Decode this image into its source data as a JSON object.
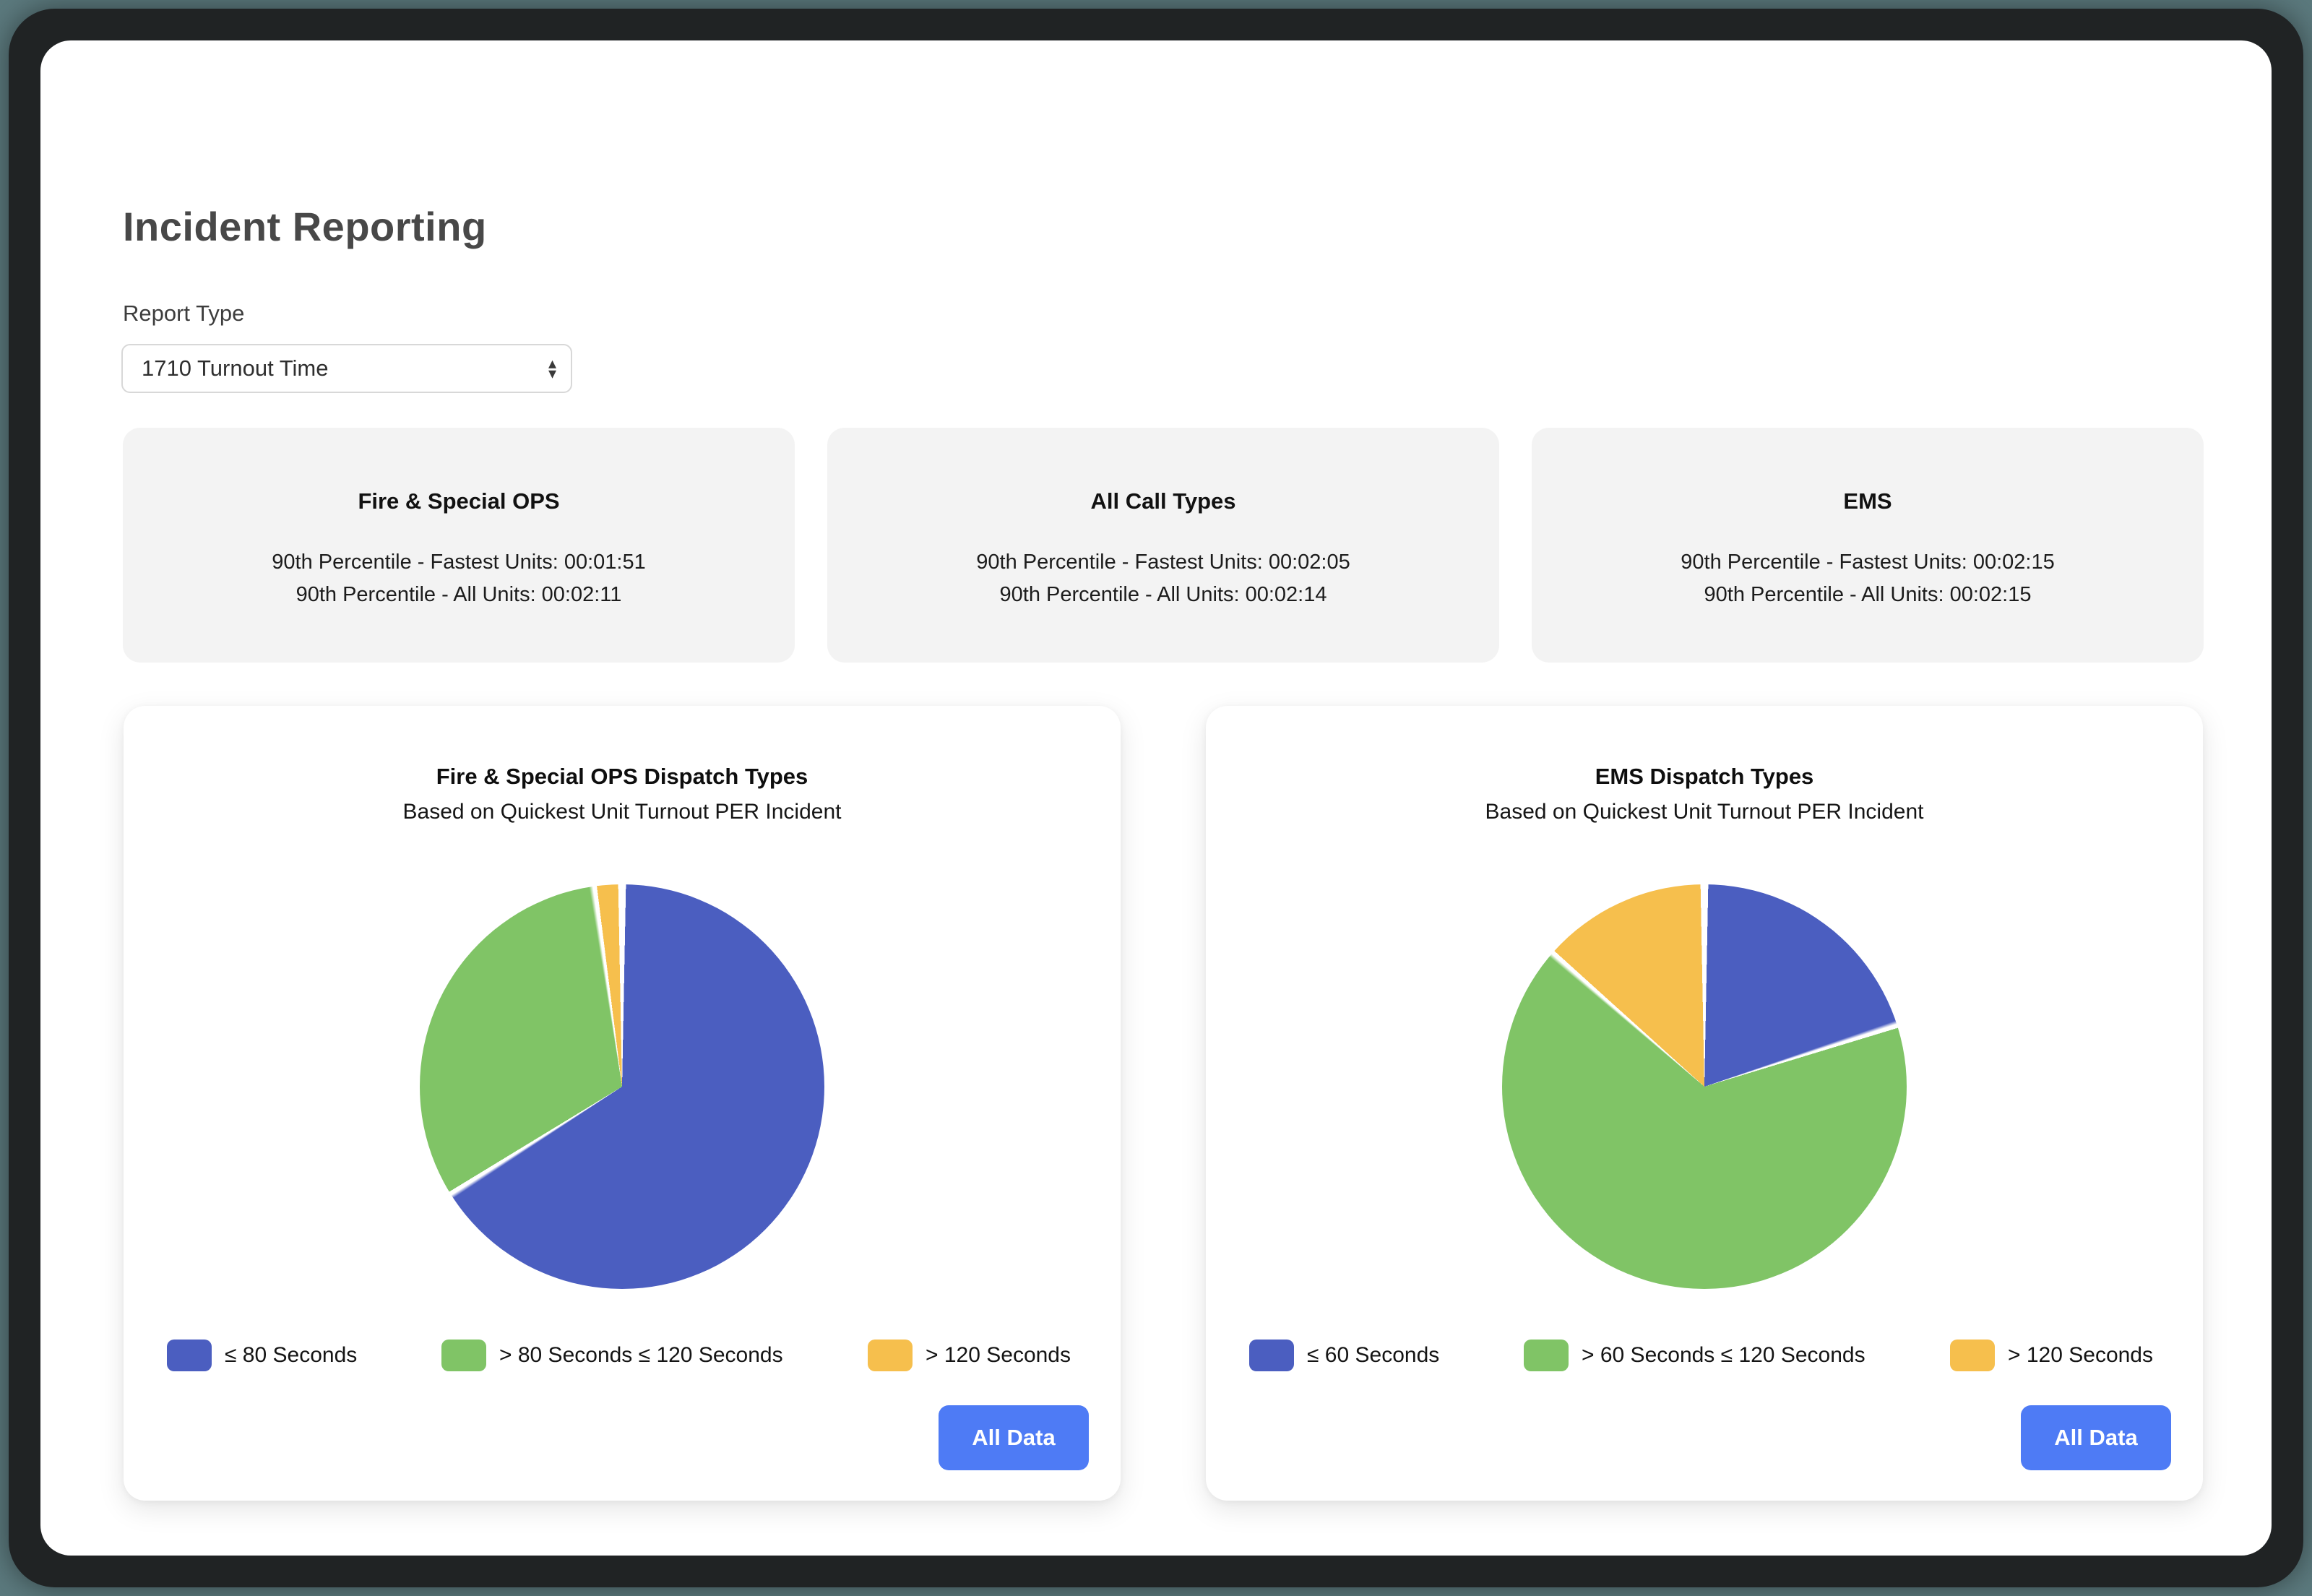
{
  "page": {
    "title": "Incident Reporting"
  },
  "report_type": {
    "label": "Report Type",
    "selected": "1710 Turnout Time",
    "arrows_icon": "select-arrows"
  },
  "stat_cards": [
    {
      "title": "Fire & Special OPS",
      "line1": "90th Percentile - Fastest Units: 00:01:51",
      "line2": "90th Percentile - All Units: 00:02:11"
    },
    {
      "title": "All Call Types",
      "line1": "90th Percentile - Fastest Units: 00:02:05",
      "line2": "90th Percentile - All Units: 00:02:14"
    },
    {
      "title": "EMS",
      "line1": "90th Percentile - Fastest Units: 00:02:15",
      "line2": "90th Percentile - All Units: 00:02:15"
    }
  ],
  "colors": {
    "pie_blue": "#4b5ec0",
    "pie_green": "#80c466",
    "pie_yellow": "#f6bf4d",
    "button_blue": "#4e7bf5",
    "stat_card_bg": "#f3f3f3"
  },
  "chart_data": [
    {
      "type": "pie",
      "title": "Fire & Special OPS Dispatch Types",
      "subtitle": "Based on Quickest Unit Turnout PER Incident",
      "labels": [
        "≤ 80 Seconds",
        "> 80 Seconds ≤ 120 Seconds",
        "> 120 Seconds"
      ],
      "values": [
        66.0,
        31.7,
        2.3
      ],
      "colors": [
        "#4b5ec0",
        "#80c466",
        "#f6bf4d"
      ],
      "legend_position": "bottom",
      "start_angle_deg": 0,
      "button_label": "All Data"
    },
    {
      "type": "pie",
      "title": "EMS Dispatch Types",
      "subtitle": "Based on Quickest Unit Turnout PER Incident",
      "labels": [
        "≤ 60 Seconds",
        "> 60 Seconds ≤ 120 Seconds",
        "> 120 Seconds"
      ],
      "values": [
        20.0,
        66.4,
        13.6
      ],
      "colors": [
        "#4b5ec0",
        "#80c466",
        "#f6bf4d"
      ],
      "legend_position": "bottom",
      "start_angle_deg": 0,
      "button_label": "All Data"
    }
  ]
}
